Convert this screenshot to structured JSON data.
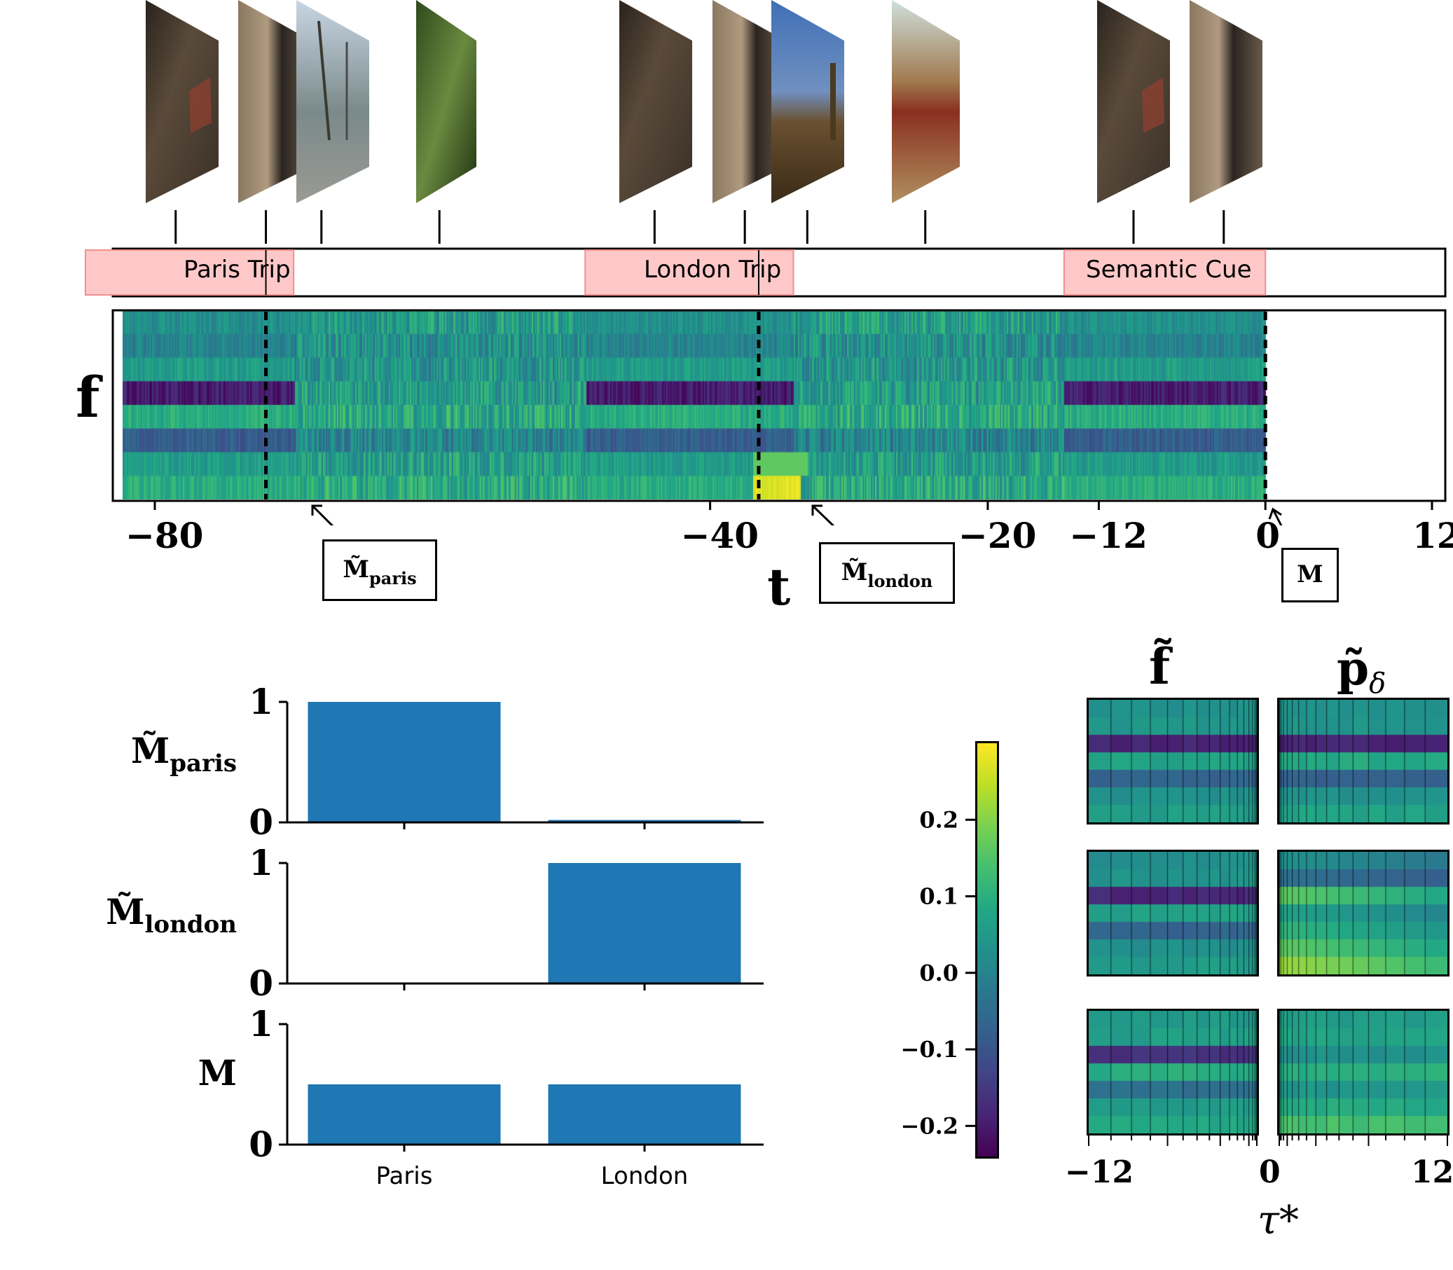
{
  "chart_data": [
    {
      "type": "heatmap",
      "xlabel": "t",
      "ylabel": "f",
      "x_ticks": [
        -80,
        -40,
        -20,
        -12,
        0,
        12
      ],
      "x_tick_labels": [
        "−80",
        "−40",
        "−20",
        "−12",
        "0",
        "12"
      ],
      "xlim": [
        -86,
        13
      ],
      "events": [
        {
          "label": "Paris Trip",
          "start": -85,
          "end": -70
        },
        {
          "label": "London Trip",
          "start": -49,
          "end": -34
        },
        {
          "label": "Semantic Cue",
          "start": -14.5,
          "end": 0
        }
      ],
      "image_times": [
        -78.5,
        -72,
        -68,
        -59.5,
        -44,
        -37.5,
        -33,
        -24.5,
        -9.5,
        -3
      ],
      "markers": [
        {
          "x": -72,
          "label_main": "M̃",
          "label_sub": "paris"
        },
        {
          "x": -36.5,
          "label_main": "M̃",
          "label_sub": "london"
        },
        {
          "x": 0,
          "label_main": "M",
          "label_sub": ""
        }
      ]
    },
    {
      "type": "bar",
      "categories": [
        "Paris",
        "London"
      ],
      "panels": [
        {
          "ylabel_main": "M̃",
          "ylabel_sub": "paris",
          "values": [
            1.0,
            0.02
          ]
        },
        {
          "ylabel_main": "M̃",
          "ylabel_sub": "london",
          "values": [
            0.0,
            1.0
          ]
        },
        {
          "ylabel_main": "M",
          "ylabel_sub": "",
          "values": [
            0.5,
            0.5
          ]
        }
      ],
      "ylim": [
        0,
        1
      ],
      "y_ticks": [
        "0",
        "1"
      ]
    },
    {
      "type": "heatmap",
      "colorbar": {
        "min": -0.24,
        "max": 0.3,
        "ticks": [
          0.2,
          0.1,
          0.0,
          -0.1,
          -0.2
        ],
        "tick_labels": [
          "0.2",
          "0.1",
          "0.0",
          "−0.1",
          "−0.2"
        ],
        "colormap": "viridis"
      },
      "columns": [
        {
          "title_main": "f̃",
          "title_sub": "",
          "x_ticks": [
            "−12",
            "0"
          ]
        },
        {
          "title_main": "p̃",
          "title_sub": "δ",
          "x_ticks": [
            "0",
            "12"
          ]
        }
      ],
      "xlabel": "τ*"
    }
  ],
  "segments": [
    "Paris Trip",
    "London Trip",
    "Semantic Cue"
  ],
  "colors": {
    "bar": "#1f77b4",
    "segment": "#ffc8c8",
    "segment_edge": "#f28e8e"
  }
}
